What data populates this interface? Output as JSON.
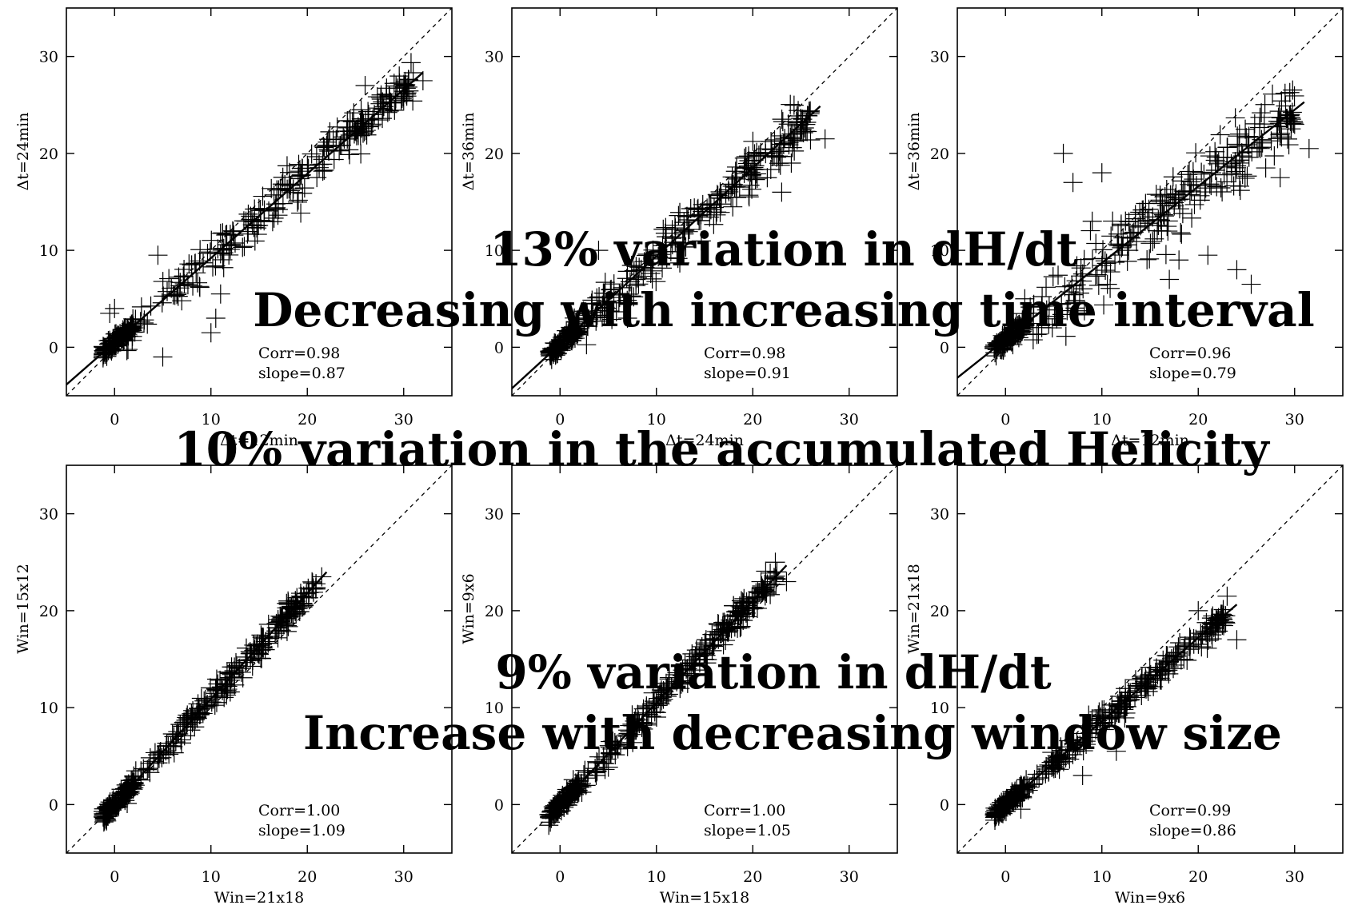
{
  "colors": {
    "overlay": "#ff1a00",
    "ink": "#000000",
    "background": "#ffffff"
  },
  "overlays": [
    "13% variation in dH/dt",
    "Decreasing with increasing time interval",
    "10% variation in the accumulated Helicity",
    "9% variation in dH/dt",
    "Increase with decreasing window size"
  ],
  "chart_data": [
    {
      "type": "scatter",
      "xlabel": "Δt=12min",
      "ylabel": "Δt=24min",
      "xlim": [
        -5,
        35
      ],
      "ylim": [
        -5,
        35
      ],
      "xticks": [
        0,
        10,
        20,
        30
      ],
      "yticks": [
        0,
        10,
        20,
        30
      ],
      "diagonal": true,
      "fit": {
        "slope": 0.87,
        "intercept": 0.5,
        "x_range": [
          -5,
          32
        ]
      },
      "corr_text": "Corr=0.98",
      "slope_text": "slope=0.87",
      "outliers": [
        [
          5,
          -1
        ],
        [
          10,
          1.5
        ],
        [
          10.5,
          3
        ],
        [
          11,
          5.5
        ],
        [
          4.5,
          9.5
        ],
        [
          -0.5,
          3.5
        ],
        [
          0,
          4
        ],
        [
          26,
          27
        ],
        [
          30,
          25.5
        ],
        [
          32,
          27.5
        ]
      ]
    },
    {
      "type": "scatter",
      "xlabel": "Δt=24min",
      "ylabel": "Δt=36min",
      "xlim": [
        -5,
        35
      ],
      "ylim": [
        -5,
        35
      ],
      "xticks": [
        0,
        10,
        20,
        30
      ],
      "yticks": [
        0,
        10,
        20,
        30
      ],
      "diagonal": true,
      "fit": {
        "slope": 0.91,
        "intercept": 0.3,
        "x_range": [
          -5,
          27
        ]
      },
      "corr_text": "Corr=0.98",
      "slope_text": "slope=0.91",
      "outliers": [
        [
          27.5,
          21.5
        ],
        [
          23,
          16
        ],
        [
          24,
          19
        ],
        [
          4,
          10
        ],
        [
          7,
          3
        ]
      ]
    },
    {
      "type": "scatter",
      "xlabel": "Δt=12min",
      "ylabel": "Δt=36min",
      "xlim": [
        -5,
        35
      ],
      "ylim": [
        -5,
        35
      ],
      "xticks": [
        0,
        10,
        20,
        30
      ],
      "yticks": [
        0,
        10,
        20,
        30
      ],
      "diagonal": true,
      "fit": {
        "slope": 0.79,
        "intercept": 0.8,
        "x_range": [
          -5,
          31
        ]
      },
      "corr_text": "Corr=0.96",
      "slope_text": "slope=0.79",
      "outliers": [
        [
          31.5,
          20.5
        ],
        [
          30,
          23
        ],
        [
          27,
          18.5
        ],
        [
          28.5,
          17.5
        ],
        [
          17,
          7
        ],
        [
          18,
          9
        ],
        [
          21,
          9.5
        ],
        [
          24,
          8
        ],
        [
          25.5,
          6.5
        ],
        [
          9,
          13
        ],
        [
          7,
          17
        ],
        [
          6,
          20
        ],
        [
          10,
          18
        ],
        [
          2,
          5
        ]
      ]
    },
    {
      "type": "scatter",
      "xlabel": "Win=21x18",
      "ylabel": "Win=15x12",
      "xlim": [
        -5,
        35
      ],
      "ylim": [
        -5,
        35
      ],
      "xticks": [
        0,
        10,
        20,
        30
      ],
      "yticks": [
        0,
        10,
        20,
        30
      ],
      "diagonal": true,
      "fit": {
        "slope": 1.09,
        "intercept": 0.0,
        "x_range": [
          -1,
          22
        ]
      },
      "corr_text": "Corr=1.00",
      "slope_text": "slope=1.09",
      "outliers": [
        [
          21.5,
          23.5
        ],
        [
          19,
          20.5
        ],
        [
          18,
          21
        ],
        [
          15,
          15.5
        ]
      ]
    },
    {
      "type": "scatter",
      "xlabel": "Win=15x18",
      "ylabel": "Win=9x6",
      "xlim": [
        -5,
        35
      ],
      "ylim": [
        -5,
        35
      ],
      "xticks": [
        0,
        10,
        20,
        30
      ],
      "yticks": [
        0,
        10,
        20,
        30
      ],
      "diagonal": true,
      "fit": {
        "slope": 1.05,
        "intercept": 0.0,
        "x_range": [
          -1,
          23.5
        ]
      },
      "corr_text": "Corr=1.00",
      "slope_text": "slope=1.05",
      "outliers": [
        [
          23.5,
          23
        ],
        [
          22.5,
          24
        ],
        [
          18,
          20.5
        ],
        [
          19,
          19
        ]
      ]
    },
    {
      "type": "scatter",
      "xlabel": "Win=9x6",
      "ylabel": "Win=21x18",
      "xlim": [
        -5,
        35
      ],
      "ylim": [
        -5,
        35
      ],
      "xticks": [
        0,
        10,
        20,
        30
      ],
      "yticks": [
        0,
        10,
        20,
        30
      ],
      "diagonal": true,
      "fit": {
        "slope": 0.86,
        "intercept": 0.0,
        "x_range": [
          -1,
          24
        ]
      },
      "corr_text": "Corr=0.99",
      "slope_text": "slope=0.86",
      "outliers": [
        [
          23,
          21.5
        ],
        [
          24,
          17
        ],
        [
          22.5,
          18.5
        ],
        [
          11.5,
          5.5
        ],
        [
          8,
          3
        ],
        [
          20,
          20
        ]
      ]
    }
  ]
}
